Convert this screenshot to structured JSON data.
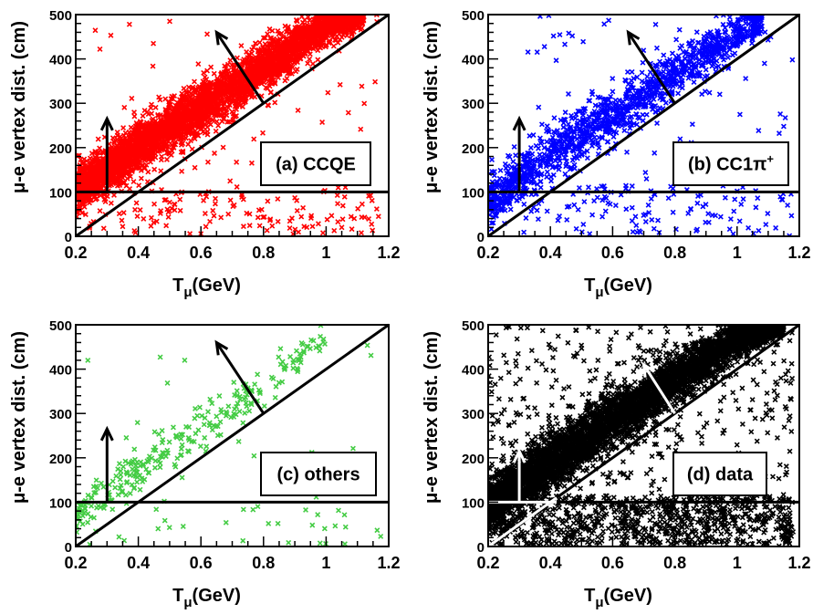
{
  "chart_data": [
    {
      "type": "scatter",
      "panel_label": "(a) CCQE",
      "xlabel": "T",
      "xlabel_sub": "μ",
      "xlabel_unit": "(GeV)",
      "ylabel": "μ-e vertex dist. (cm)",
      "xlim": [
        0.2,
        1.2
      ],
      "ylim": [
        0,
        500
      ],
      "xticks": [
        "0.2",
        "0.4",
        "0.6",
        "0.8",
        "1",
        "1.2"
      ],
      "yticks": [
        "0",
        "100",
        "200",
        "300",
        "400",
        "500"
      ],
      "grid": false,
      "marker": "x",
      "series": [
        {
          "color": "#ff0000",
          "density": "very high",
          "band": {
            "x": [
              0.2,
              0.4,
              0.6,
              0.8,
              1.0,
              1.12
            ],
            "center": [
              105,
              200,
              290,
              380,
              475,
              500
            ],
            "width": [
              45,
              55,
              60,
              55,
              40,
              25
            ]
          },
          "outlier_fraction": 0.05,
          "count": 4200
        }
      ],
      "cuts": {
        "horizontal_y": 100,
        "diagonal": {
          "x": [
            0.2,
            1.2
          ],
          "y": [
            0,
            500
          ]
        }
      },
      "arrows": [
        {
          "from": [
            0.3,
            100
          ],
          "to": [
            0.3,
            265
          ]
        },
        {
          "from": [
            0.8,
            300
          ],
          "to": [
            0.65,
            460
          ]
        }
      ],
      "arrow_color": "#000000"
    },
    {
      "type": "scatter",
      "panel_label": "(b) CC1π",
      "panel_label_sup": "+",
      "xlabel": "T",
      "xlabel_sub": "μ",
      "xlabel_unit": "(GeV)",
      "ylabel": "μ-e vertex dist. (cm)",
      "xlim": [
        0.2,
        1.2
      ],
      "ylim": [
        0,
        500
      ],
      "xticks": [
        "0.2",
        "0.4",
        "0.6",
        "0.8",
        "1",
        "1.2"
      ],
      "yticks": [
        "0",
        "100",
        "200",
        "300",
        "400",
        "500"
      ],
      "grid": false,
      "marker": "x",
      "series": [
        {
          "color": "#0000ff",
          "density": "medium",
          "band": {
            "x": [
              0.2,
              0.4,
              0.6,
              0.8,
              1.0,
              1.08
            ],
            "center": [
              80,
              185,
              275,
              365,
              455,
              490
            ],
            "width": [
              55,
              60,
              60,
              55,
              45,
              30
            ]
          },
          "outlier_fraction": 0.14,
          "count": 1500
        }
      ],
      "cuts": {
        "horizontal_y": 100,
        "diagonal": {
          "x": [
            0.2,
            1.2
          ],
          "y": [
            0,
            500
          ]
        }
      },
      "arrows": [
        {
          "from": [
            0.3,
            100
          ],
          "to": [
            0.3,
            265
          ]
        },
        {
          "from": [
            0.8,
            300
          ],
          "to": [
            0.65,
            460
          ]
        }
      ],
      "arrow_color": "#000000"
    },
    {
      "type": "scatter",
      "panel_label": "(c) others",
      "xlabel": "T",
      "xlabel_sub": "μ",
      "xlabel_unit": "(GeV)",
      "ylabel": "μ-e vertex dist. (cm)",
      "xlim": [
        0.2,
        1.2
      ],
      "ylim": [
        0,
        500
      ],
      "xticks": [
        "0.2",
        "0.4",
        "0.6",
        "0.8",
        "1",
        "1.2"
      ],
      "yticks": [
        "0",
        "100",
        "200",
        "300",
        "400",
        "500"
      ],
      "grid": false,
      "marker": "x",
      "series": [
        {
          "color": "#44cc44",
          "density": "low",
          "band": {
            "x": [
              0.2,
              0.4,
              0.6,
              0.8,
              1.0
            ],
            "center": [
              70,
              170,
              265,
              360,
              470
            ],
            "width": [
              40,
              50,
              55,
              50,
              35
            ]
          },
          "outlier_fraction": 0.15,
          "count": 330
        }
      ],
      "cuts": {
        "horizontal_y": 100,
        "diagonal": {
          "x": [
            0.2,
            1.2
          ],
          "y": [
            0,
            500
          ]
        }
      },
      "arrows": [
        {
          "from": [
            0.3,
            100
          ],
          "to": [
            0.3,
            265
          ]
        },
        {
          "from": [
            0.8,
            300
          ],
          "to": [
            0.65,
            460
          ]
        }
      ],
      "arrow_color": "#000000"
    },
    {
      "type": "scatter",
      "panel_label": "(d) data",
      "xlabel": "T",
      "xlabel_sub": "μ",
      "xlabel_unit": "(GeV)",
      "ylabel": "μ-e vertex dist. (cm)",
      "xlim": [
        0.2,
        1.2
      ],
      "ylim": [
        0,
        500
      ],
      "xticks": [
        "0.2",
        "0.4",
        "0.6",
        "0.8",
        "1",
        "1.2"
      ],
      "yticks": [
        "0",
        "100",
        "200",
        "300",
        "400",
        "500"
      ],
      "grid": false,
      "marker": "x",
      "series": [
        {
          "color": "#000000",
          "density": "very high",
          "band": {
            "x": [
              0.2,
              0.4,
              0.6,
              0.8,
              1.0,
              1.15
            ],
            "center": [
              95,
              190,
              285,
              375,
              470,
              500
            ],
            "width": [
              55,
              60,
              60,
              55,
              45,
              25
            ]
          },
          "outlier_fraction": 0.22,
          "count": 6000
        }
      ],
      "cuts": {
        "horizontal_y": 100,
        "diagonal": {
          "x": [
            0.2,
            1.2
          ],
          "y": [
            0,
            500
          ]
        }
      },
      "arrows": [
        {
          "from": [
            0.3,
            100
          ],
          "to": [
            0.3,
            215
          ]
        },
        {
          "from": [
            0.8,
            300
          ],
          "to": [
            0.7,
            410
          ]
        }
      ],
      "arrow_color": "#ffffff"
    }
  ]
}
